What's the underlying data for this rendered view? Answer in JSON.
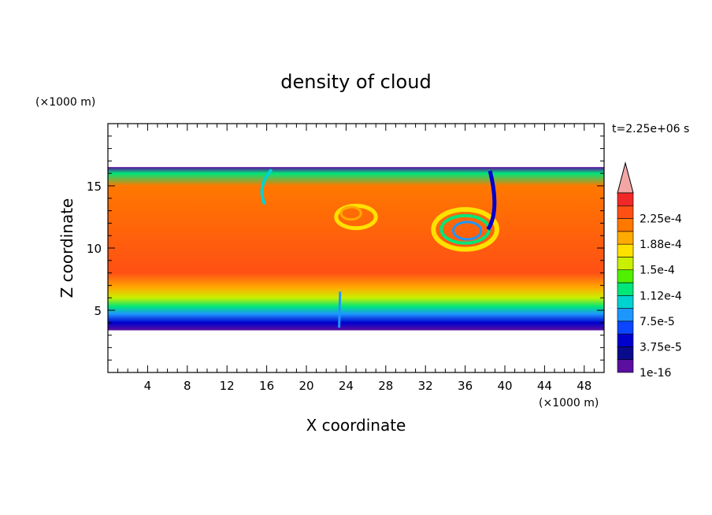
{
  "chart_data": {
    "type": "heatmap",
    "title": "density of cloud",
    "xlabel": "X coordinate",
    "ylabel": "Z coordinate",
    "x_unit_label": "(×1000 m)",
    "y_unit_label": "(×1000 m)",
    "time_label": "t=2.25e+06 s",
    "xlim": [
      0,
      50
    ],
    "ylim": [
      0,
      20
    ],
    "x_ticks": [
      4,
      8,
      12,
      16,
      20,
      24,
      28,
      32,
      36,
      40,
      44,
      48
    ],
    "y_ticks": [
      5,
      10,
      15
    ],
    "x_minor_step": 1,
    "y_minor_step": 1,
    "colorbar": {
      "levels": [
        "1e-16",
        "1.875e-5",
        "3.75e-5",
        "5.625e-5",
        "7.5e-5",
        "9.375e-5",
        "1.12e-4",
        "1.31e-4",
        "1.5e-4",
        "1.69e-4",
        "1.88e-4",
        "2.06e-4",
        "2.25e-4",
        "2.44e-4"
      ],
      "tick_labels": [
        "1e-16",
        "3.75e-5",
        "7.5e-5",
        "1.12e-4",
        "1.5e-4",
        "1.88e-4",
        "2.25e-4"
      ],
      "colors": [
        "#5a0fa0",
        "#0a0a8c",
        "#0000cd",
        "#0a46ff",
        "#1e96ff",
        "#00d2d2",
        "#00e678",
        "#50f000",
        "#c8f000",
        "#ffe100",
        "#ffaa00",
        "#ff7800",
        "#ff5014",
        "#f02828"
      ],
      "extend_color": "#f4a6a6"
    },
    "cloud_layer": {
      "z_bottom": 3.4,
      "z_top": 16.5,
      "profile": [
        {
          "z": 3.4,
          "v": "1e-16"
        },
        {
          "z": 4.0,
          "v": "3.75e-5"
        },
        {
          "z": 4.7,
          "v": "7.5e-5"
        },
        {
          "z": 5.3,
          "v": "1.12e-4"
        },
        {
          "z": 6.0,
          "v": "1.5e-4"
        },
        {
          "z": 6.8,
          "v": "1.88e-4"
        },
        {
          "z": 8.0,
          "v": "2.25e-4"
        },
        {
          "z": 15.0,
          "v": "2.06e-4"
        },
        {
          "z": 16.0,
          "v": "1.12e-4"
        },
        {
          "z": 16.5,
          "v": "1e-16"
        }
      ],
      "vortex_center": [
        36,
        11.5
      ],
      "vortex_center_2": [
        25,
        12.5
      ]
    }
  }
}
